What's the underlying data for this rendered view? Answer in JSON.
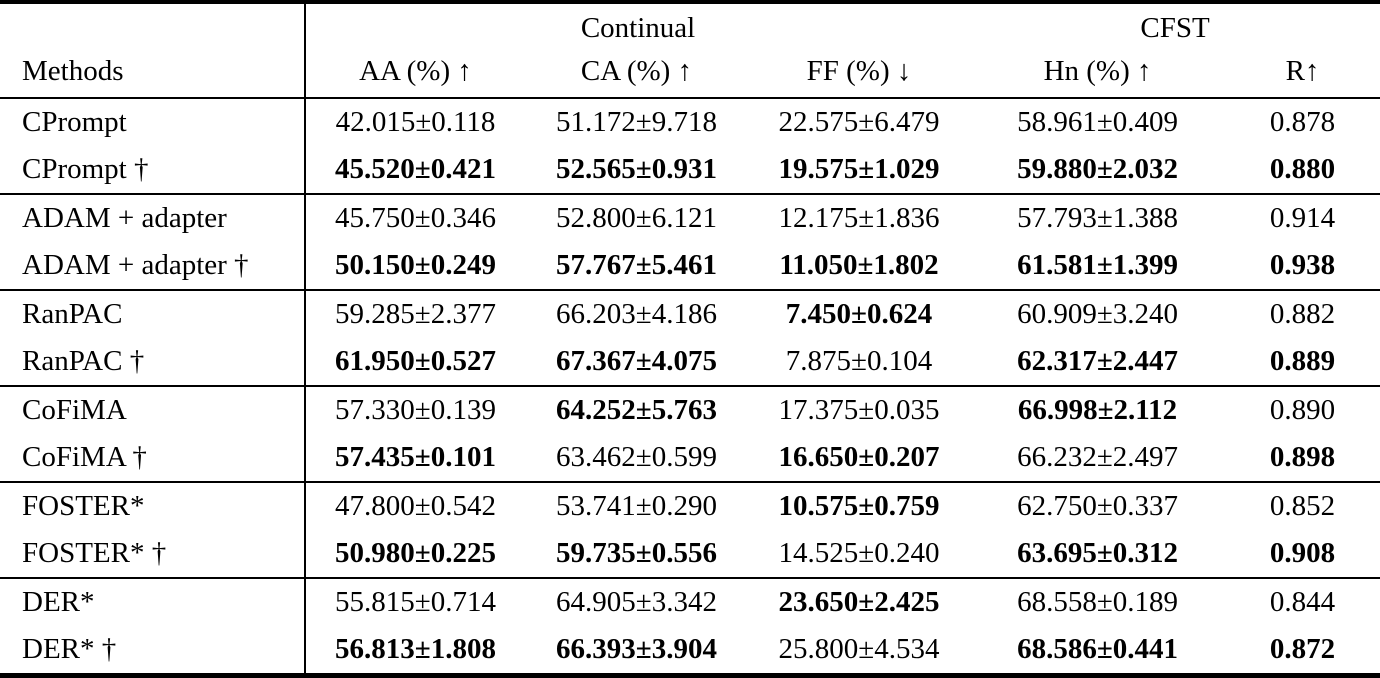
{
  "table": {
    "group_headers": {
      "continual": "Continual",
      "cfst": "CFST"
    },
    "columns": [
      "Methods",
      "AA (%) ↑",
      "CA (%) ↑",
      "FF (%) ↓",
      "Hn (%) ↑",
      "R↑"
    ],
    "groups": [
      {
        "rows": [
          {
            "method": "CPrompt",
            "cells": [
              {
                "text": "42.015±0.118",
                "bold": false
              },
              {
                "text": "51.172±9.718",
                "bold": false
              },
              {
                "text": "22.575±6.479",
                "bold": false
              },
              {
                "text": "58.961±0.409",
                "bold": false
              },
              {
                "text": "0.878",
                "bold": false
              }
            ]
          },
          {
            "method": "CPrompt †",
            "cells": [
              {
                "text": "45.520±0.421",
                "bold": true
              },
              {
                "text": "52.565±0.931",
                "bold": true
              },
              {
                "text": "19.575±1.029",
                "bold": true
              },
              {
                "text": "59.880±2.032",
                "bold": true
              },
              {
                "text": "0.880",
                "bold": true
              }
            ]
          }
        ]
      },
      {
        "rows": [
          {
            "method": "ADAM + adapter",
            "cells": [
              {
                "text": "45.750±0.346",
                "bold": false
              },
              {
                "text": "52.800±6.121",
                "bold": false
              },
              {
                "text": "12.175±1.836",
                "bold": false
              },
              {
                "text": "57.793±1.388",
                "bold": false
              },
              {
                "text": "0.914",
                "bold": false
              }
            ]
          },
          {
            "method": "ADAM + adapter †",
            "cells": [
              {
                "text": "50.150±0.249",
                "bold": true
              },
              {
                "text": "57.767±5.461",
                "bold": true
              },
              {
                "text": "11.050±1.802",
                "bold": true
              },
              {
                "text": "61.581±1.399",
                "bold": true
              },
              {
                "text": "0.938",
                "bold": true
              }
            ]
          }
        ]
      },
      {
        "rows": [
          {
            "method": "RanPAC",
            "cells": [
              {
                "text": "59.285±2.377",
                "bold": false
              },
              {
                "text": "66.203±4.186",
                "bold": false
              },
              {
                "text": "7.450±0.624",
                "bold": true
              },
              {
                "text": "60.909±3.240",
                "bold": false
              },
              {
                "text": "0.882",
                "bold": false
              }
            ]
          },
          {
            "method": "RanPAC †",
            "cells": [
              {
                "text": "61.950±0.527",
                "bold": true
              },
              {
                "text": "67.367±4.075",
                "bold": true
              },
              {
                "text": "7.875±0.104",
                "bold": false
              },
              {
                "text": "62.317±2.447",
                "bold": true
              },
              {
                "text": "0.889",
                "bold": true
              }
            ]
          }
        ]
      },
      {
        "rows": [
          {
            "method": "CoFiMA",
            "cells": [
              {
                "text": "57.330±0.139",
                "bold": false
              },
              {
                "text": "64.252±5.763",
                "bold": true
              },
              {
                "text": "17.375±0.035",
                "bold": false
              },
              {
                "text": "66.998±2.112",
                "bold": true
              },
              {
                "text": "0.890",
                "bold": false
              }
            ]
          },
          {
            "method": "CoFiMA †",
            "cells": [
              {
                "text": "57.435±0.101",
                "bold": true
              },
              {
                "text": "63.462±0.599",
                "bold": false
              },
              {
                "text": "16.650±0.207",
                "bold": true
              },
              {
                "text": "66.232±2.497",
                "bold": false
              },
              {
                "text": "0.898",
                "bold": true
              }
            ]
          }
        ]
      },
      {
        "rows": [
          {
            "method": "FOSTER*",
            "cells": [
              {
                "text": "47.800±0.542",
                "bold": false
              },
              {
                "text": "53.741±0.290",
                "bold": false
              },
              {
                "text": "10.575±0.759",
                "bold": true
              },
              {
                "text": "62.750±0.337",
                "bold": false
              },
              {
                "text": "0.852",
                "bold": false
              }
            ]
          },
          {
            "method": "FOSTER* †",
            "cells": [
              {
                "text": "50.980±0.225",
                "bold": true
              },
              {
                "text": "59.735±0.556",
                "bold": true
              },
              {
                "text": "14.525±0.240",
                "bold": false
              },
              {
                "text": "63.695±0.312",
                "bold": true
              },
              {
                "text": "0.908",
                "bold": true
              }
            ]
          }
        ]
      },
      {
        "rows": [
          {
            "method": "DER*",
            "cells": [
              {
                "text": "55.815±0.714",
                "bold": false
              },
              {
                "text": "64.905±3.342",
                "bold": false
              },
              {
                "text": "23.650±2.425",
                "bold": true
              },
              {
                "text": "68.558±0.189",
                "bold": false
              },
              {
                "text": "0.844",
                "bold": false
              }
            ]
          },
          {
            "method": "DER* †",
            "cells": [
              {
                "text": "56.813±1.808",
                "bold": true
              },
              {
                "text": "66.393±3.904",
                "bold": true
              },
              {
                "text": "25.800±4.534",
                "bold": false
              },
              {
                "text": "68.586±0.441",
                "bold": true
              },
              {
                "text": "0.872",
                "bold": true
              }
            ]
          }
        ]
      }
    ]
  }
}
